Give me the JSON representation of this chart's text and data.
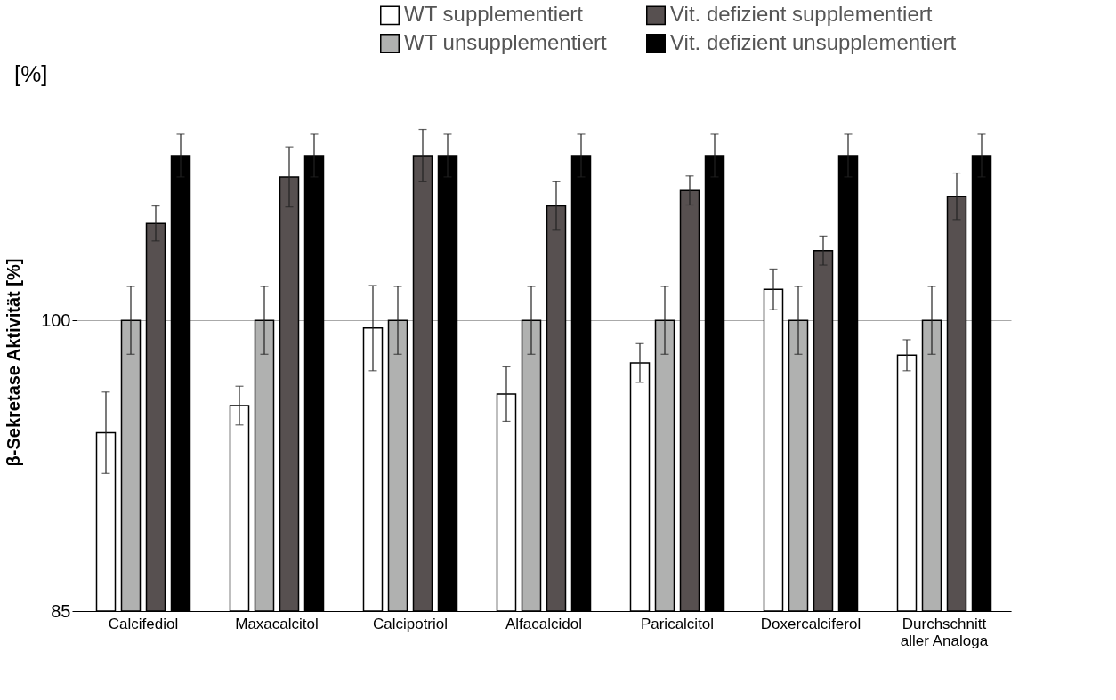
{
  "chart_data": {
    "type": "bar",
    "ylabel": "β-Sekretase Aktivität [%]",
    "annotations": [
      "[%]"
    ],
    "categories": [
      "Calcifediol",
      "Maxacalcitol",
      "Calcipotriol",
      "Alfacalcidol",
      "Paricalcitol",
      "Doxercalciferol",
      "Durchschnitt\naller Analoga"
    ],
    "series": [
      {
        "name": "WT supplementiert",
        "color": "#ffffff",
        "values": [
          94.2,
          95.6,
          99.6,
          96.2,
          97.8,
          101.6,
          98.2
        ],
        "errors": [
          2.1,
          1.0,
          2.2,
          1.4,
          1.0,
          1.05,
          0.8
        ]
      },
      {
        "name": "WT unsupplementiert",
        "color": "#b0b1b0",
        "values": [
          100,
          100,
          100,
          100,
          100,
          100,
          100
        ],
        "errors": [
          1.75,
          1.75,
          1.75,
          1.75,
          1.75,
          1.75,
          1.75
        ]
      },
      {
        "name": "Vit. defizient supplementiert",
        "color": "#575050",
        "values": [
          105.0,
          107.4,
          108.5,
          105.9,
          106.7,
          103.6,
          106.4
        ],
        "errors": [
          0.9,
          1.55,
          1.35,
          1.25,
          0.75,
          0.75,
          1.2
        ]
      },
      {
        "name": "Vit. defizient unsupplementiert",
        "color": "#000000",
        "values": [
          108.5,
          108.5,
          108.5,
          108.5,
          108.5,
          108.5,
          108.5
        ],
        "errors": [
          1.1,
          1.1,
          1.1,
          1.1,
          1.1,
          1.1,
          1.1
        ]
      }
    ],
    "ylim": [
      85,
      110.7
    ],
    "yticks": [
      85,
      100
    ],
    "grid": "y",
    "legend": "top right"
  }
}
